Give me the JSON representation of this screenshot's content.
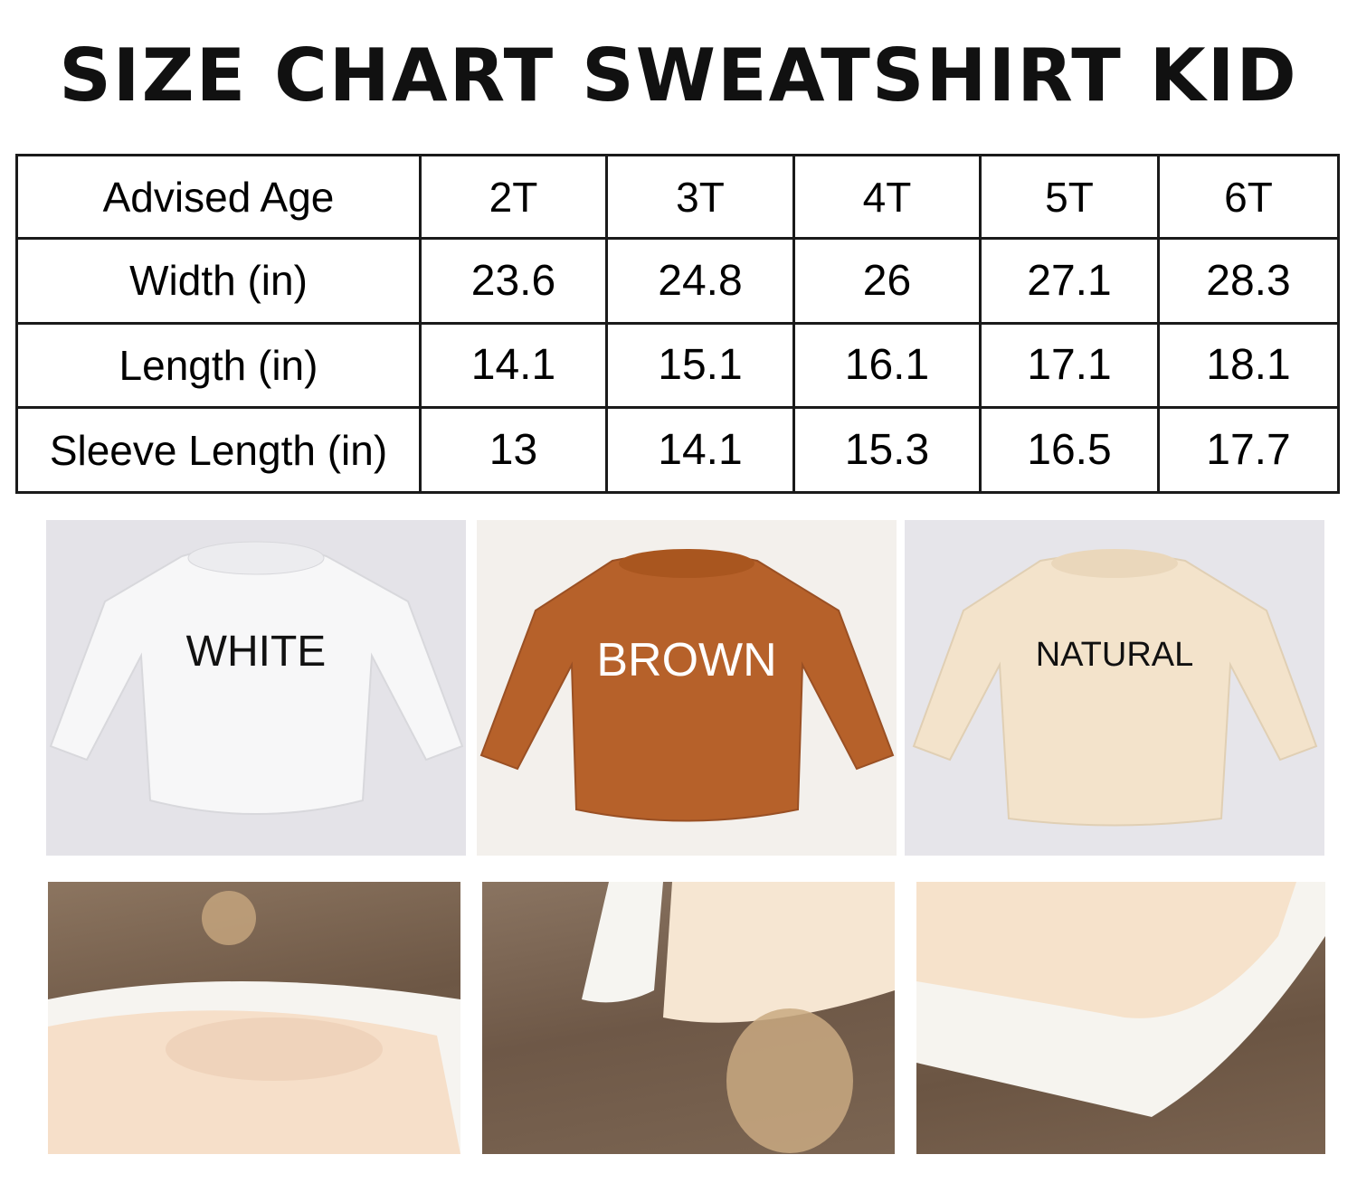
{
  "title": "SIZE CHART SWEATSHIRT KID",
  "size_table": {
    "headers": [
      "Advised Age",
      "2T",
      "3T",
      "4T",
      "5T",
      "6T"
    ],
    "rows": [
      {
        "label": "Width (in)",
        "values": [
          "23.6",
          "24.8",
          "26",
          "27.1",
          "28.3"
        ]
      },
      {
        "label": "Length (in)",
        "values": [
          "14.1",
          "15.1",
          "16.1",
          "17.1",
          "18.1"
        ]
      },
      {
        "label": "Sleeve Length (in)",
        "values": [
          "13",
          "14.1",
          "15.3",
          "16.5",
          "17.7"
        ]
      }
    ]
  },
  "colors": [
    {
      "label": "WHITE",
      "swatch": "#f7f7f8",
      "text_color": "#111111"
    },
    {
      "label": "BROWN",
      "swatch": "#b6612a",
      "text_color": "#ffffff"
    },
    {
      "label": "NATURAL",
      "swatch": "#f3e3cb",
      "text_color": "#111111"
    }
  ]
}
